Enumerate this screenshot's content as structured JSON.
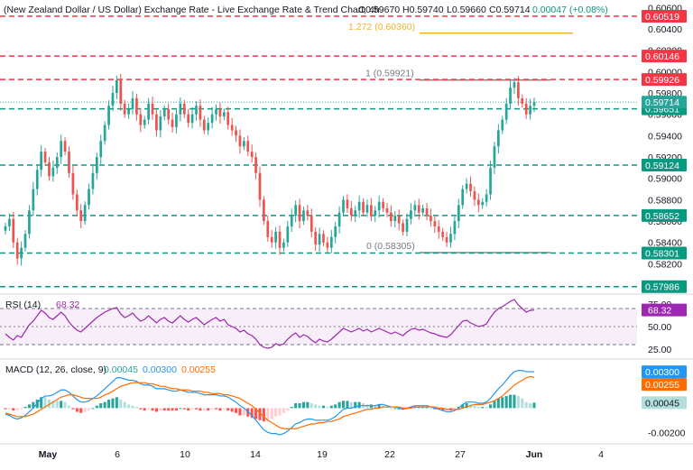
{
  "header": {
    "title": "(New Zealand Dollar / US Dollar) Exchange Rate - Live Exchange Rate & Trend Chart, 4h",
    "open": "O0.59670",
    "high": "H0.59740",
    "low": "L0.59660",
    "close": "C0.59714",
    "change": "0.00047 (+0.08%)"
  },
  "colors": {
    "up": "#26a69a",
    "down": "#ef5350",
    "red_level": "#f23645",
    "green_level": "#089981",
    "fib": "#f0b429",
    "rsi": "#9c27b0",
    "macd": "#2196f3",
    "signal": "#ff6d00"
  },
  "chart_data": [
    {
      "type": "candlestick",
      "x_ticks": [
        "May",
        "6",
        "10",
        "14",
        "19",
        "22",
        "27",
        "Jun",
        "4"
      ],
      "y_ticks": [
        "0.60600",
        "0.60400",
        "0.60200",
        "0.60000",
        "0.59800",
        "0.59600",
        "0.59400",
        "0.59200",
        "0.59000",
        "0.58800",
        "0.58600",
        "0.58400",
        "0.58200"
      ],
      "ylim": [
        0.5795,
        0.6062
      ],
      "closes": [
        0.5855,
        0.5862,
        0.584,
        0.5825,
        0.5835,
        0.5848,
        0.587,
        0.589,
        0.5908,
        0.5925,
        0.5915,
        0.5902,
        0.591,
        0.592,
        0.5935,
        0.5925,
        0.5905,
        0.5885,
        0.587,
        0.586,
        0.5875,
        0.589,
        0.5905,
        0.592,
        0.5935,
        0.595,
        0.5968,
        0.598,
        0.5992,
        0.597,
        0.596,
        0.5965,
        0.5975,
        0.596,
        0.595,
        0.5955,
        0.597,
        0.596,
        0.5945,
        0.5958,
        0.5965,
        0.5955,
        0.5948,
        0.596,
        0.597,
        0.596,
        0.5952,
        0.596,
        0.5968,
        0.5955,
        0.5945,
        0.5952,
        0.596,
        0.5965,
        0.5958,
        0.5962,
        0.595,
        0.5945,
        0.594,
        0.593,
        0.5935,
        0.5925,
        0.592,
        0.5905,
        0.588,
        0.586,
        0.5845,
        0.584,
        0.585,
        0.5835,
        0.584,
        0.5855,
        0.5865,
        0.5875,
        0.586,
        0.587,
        0.5865,
        0.585,
        0.5838,
        0.5848,
        0.584,
        0.5835,
        0.5845,
        0.5855,
        0.5868,
        0.588,
        0.5872,
        0.5865,
        0.587,
        0.5878,
        0.5868,
        0.5875,
        0.5865,
        0.587,
        0.5878,
        0.5872,
        0.5868,
        0.586,
        0.5865,
        0.5858,
        0.585,
        0.5862,
        0.587,
        0.5875,
        0.5868,
        0.5872,
        0.5865,
        0.586,
        0.5855,
        0.585,
        0.5845,
        0.584,
        0.5848,
        0.586,
        0.5875,
        0.589,
        0.5895,
        0.5888,
        0.588,
        0.5875,
        0.5878,
        0.5885,
        0.591,
        0.593,
        0.5945,
        0.5955,
        0.597,
        0.5985,
        0.599,
        0.5975,
        0.597,
        0.596,
        0.5968,
        0.59714
      ],
      "fib_levels": [
        {
          "label": "1.272 (0.60360)",
          "value": 0.6036
        },
        {
          "label": "1 (0.59921)",
          "value": 0.59921
        },
        {
          "label": "0 (0.58305)",
          "value": 0.58305
        }
      ],
      "red_levels": [
        {
          "label": "0.60519",
          "value": 0.60519
        },
        {
          "label": "0.60146",
          "value": 0.60146
        },
        {
          "label": "0.59926",
          "value": 0.59926
        }
      ],
      "green_levels": [
        {
          "label": "0.59651",
          "value": 0.59651
        },
        {
          "label": "0.59124",
          "value": 0.59124
        },
        {
          "label": "0.58652",
          "value": 0.58652
        },
        {
          "label": "0.58301",
          "value": 0.58301
        },
        {
          "label": "0.57986",
          "value": 0.57986
        }
      ],
      "last_price": {
        "label": "0.59714",
        "value": 0.59714
      }
    },
    {
      "type": "line",
      "name": "RSI (14)",
      "current": "68.32",
      "ylim": [
        20,
        80
      ],
      "y_ticks": [
        "75.00",
        "50.00",
        "25.00"
      ],
      "bands": [
        30,
        70
      ],
      "values": [
        42,
        38,
        35,
        40,
        38,
        45,
        52,
        56,
        62,
        68,
        65,
        60,
        58,
        62,
        66,
        62,
        55,
        50,
        46,
        44,
        48,
        52,
        56,
        60,
        63,
        66,
        68,
        70,
        71,
        64,
        60,
        62,
        65,
        60,
        56,
        58,
        62,
        58,
        54,
        58,
        60,
        56,
        54,
        58,
        62,
        58,
        55,
        58,
        60,
        56,
        52,
        55,
        58,
        60,
        56,
        58,
        52,
        50,
        48,
        44,
        46,
        42,
        40,
        36,
        30,
        27,
        26,
        27,
        31,
        29,
        31,
        36,
        40,
        43,
        38,
        41,
        39,
        35,
        32,
        36,
        34,
        33,
        36,
        40,
        44,
        48,
        46,
        44,
        46,
        48,
        45,
        47,
        44,
        46,
        48,
        46,
        44,
        42,
        44,
        42,
        40,
        44,
        47,
        48,
        46,
        47,
        45,
        43,
        42,
        40,
        39,
        38,
        41,
        46,
        51,
        56,
        57,
        54,
        52,
        50,
        51,
        53,
        60,
        66,
        70,
        72,
        75,
        78,
        80,
        74,
        70,
        66,
        68,
        68.32
      ]
    },
    {
      "type": "bar+line",
      "name": "MACD (12, 26, close, 9)",
      "readouts": [
        "0.00045",
        "0.00300",
        "0.00255"
      ],
      "ylim": [
        -0.0025,
        0.0036
      ],
      "y_ticks": [
        "0.00250",
        "-0.00200"
      ],
      "labels": {
        "macd": "0.00300",
        "signal": "0.00255",
        "hist": "0.00045"
      },
      "macd": [
        -0.0005,
        -0.0006,
        -0.0008,
        -0.0009,
        -0.0008,
        -0.0006,
        -0.0003,
        0.0,
        0.0004,
        0.0008,
        0.001,
        0.001,
        0.0011,
        0.0013,
        0.0015,
        0.0015,
        0.0013,
        0.001,
        0.0007,
        0.0005,
        0.0005,
        0.0006,
        0.0008,
        0.001,
        0.0013,
        0.0016,
        0.0019,
        0.0022,
        0.0025,
        0.0025,
        0.0024,
        0.0023,
        0.0023,
        0.0022,
        0.002,
        0.0019,
        0.0019,
        0.0018,
        0.0016,
        0.0016,
        0.0016,
        0.0015,
        0.0014,
        0.0014,
        0.0015,
        0.0014,
        0.0013,
        0.0013,
        0.0013,
        0.0012,
        0.0011,
        0.0011,
        0.0011,
        0.0011,
        0.001,
        0.001,
        0.0009,
        0.0007,
        0.0005,
        0.0002,
        0.0,
        -0.0003,
        -0.0006,
        -0.001,
        -0.0014,
        -0.0018,
        -0.002,
        -0.0021,
        -0.0021,
        -0.0022,
        -0.0021,
        -0.0019,
        -0.0016,
        -0.0013,
        -0.0012,
        -0.001,
        -0.0009,
        -0.0009,
        -0.001,
        -0.001,
        -0.001,
        -0.001,
        -0.0009,
        -0.0007,
        -0.0004,
        -0.0001,
        0.0,
        0.0,
        0.0001,
        0.0002,
        0.0002,
        0.0002,
        0.0002,
        0.0002,
        0.0003,
        0.0003,
        0.0002,
        0.0001,
        0.0001,
        0.0,
        -0.0001,
        0.0,
        0.0001,
        0.0002,
        0.0002,
        0.0002,
        0.0002,
        0.0001,
        0.0,
        -0.0001,
        -0.0002,
        -0.0003,
        -0.0003,
        -0.0002,
        0.0,
        0.0003,
        0.0005,
        0.0005,
        0.0005,
        0.0004,
        0.0004,
        0.0005,
        0.0008,
        0.0012,
        0.0016,
        0.0019,
        0.0023,
        0.0027,
        0.003,
        0.0031,
        0.0031,
        0.003,
        0.003,
        0.003
      ],
      "signal": [
        -0.0004,
        -0.0005,
        -0.0006,
        -0.0007,
        -0.0007,
        -0.0007,
        -0.0006,
        -0.0005,
        -0.0003,
        -0.0001,
        0.0001,
        0.0003,
        0.0005,
        0.0007,
        0.0009,
        0.001,
        0.0011,
        0.0011,
        0.001,
        0.0009,
        0.0008,
        0.0008,
        0.0008,
        0.0008,
        0.0009,
        0.0011,
        0.0012,
        0.0014,
        0.0016,
        0.0018,
        0.0019,
        0.002,
        0.0021,
        0.0021,
        0.0021,
        0.0021,
        0.002,
        0.002,
        0.0019,
        0.0018,
        0.0018,
        0.0017,
        0.0016,
        0.0016,
        0.0015,
        0.0015,
        0.0015,
        0.0014,
        0.0014,
        0.0014,
        0.0013,
        0.0013,
        0.0012,
        0.0012,
        0.0012,
        0.0011,
        0.0011,
        0.001,
        0.0009,
        0.0008,
        0.0006,
        0.0004,
        0.0002,
        -0.0001,
        -0.0004,
        -0.0007,
        -0.001,
        -0.0012,
        -0.0014,
        -0.0016,
        -0.0017,
        -0.0017,
        -0.0017,
        -0.0017,
        -0.0016,
        -0.0015,
        -0.0014,
        -0.0013,
        -0.0013,
        -0.0012,
        -0.0012,
        -0.0011,
        -0.0011,
        -0.001,
        -0.0009,
        -0.0007,
        -0.0006,
        -0.0005,
        -0.0004,
        -0.0003,
        -0.0002,
        -0.0001,
        -0.0001,
        0.0,
        0.0,
        0.0001,
        0.0001,
        0.0001,
        0.0001,
        0.0001,
        0.0,
        0.0,
        0.0,
        0.0001,
        0.0001,
        0.0001,
        0.0001,
        0.0001,
        0.0001,
        0.0,
        0.0,
        -0.0001,
        -0.0001,
        -0.0001,
        -0.0001,
        0.0,
        0.0001,
        0.0002,
        0.0003,
        0.0003,
        0.0003,
        0.0004,
        0.0005,
        0.0006,
        0.0008,
        0.001,
        0.0013,
        0.0016,
        0.0019,
        0.0021,
        0.0023,
        0.0025,
        0.0026,
        0.00255
      ]
    }
  ]
}
